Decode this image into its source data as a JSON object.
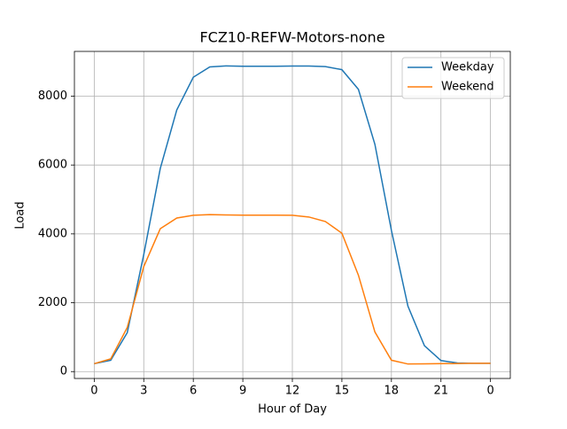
{
  "chart_data": {
    "type": "line",
    "title": "FCZ10-REFW-Motors-none",
    "x_label": "Hour of Day",
    "y_label": "Load",
    "x": [
      0,
      1,
      2,
      3,
      4,
      5,
      6,
      7,
      8,
      9,
      10,
      11,
      12,
      13,
      14,
      15,
      16,
      17,
      18,
      19,
      20,
      21,
      22,
      23,
      24
    ],
    "series": [
      {
        "name": "Weekday",
        "color": "#1f77b4",
        "values": [
          230,
          330,
          1130,
          3400,
          5900,
          7600,
          8550,
          8850,
          8880,
          8870,
          8870,
          8870,
          8875,
          8875,
          8860,
          8770,
          8200,
          6600,
          4100,
          1900,
          750,
          320,
          250,
          240,
          240
        ]
      },
      {
        "name": "Weekend",
        "color": "#ff7f0e",
        "values": [
          230,
          370,
          1280,
          3050,
          4150,
          4460,
          4540,
          4560,
          4550,
          4545,
          4545,
          4545,
          4540,
          4490,
          4360,
          4020,
          2800,
          1150,
          330,
          220,
          225,
          230,
          235,
          240,
          240
        ]
      }
    ],
    "xlim": [
      -1.2,
      25.2
    ],
    "xticks": [
      0,
      3,
      6,
      9,
      12,
      15,
      18,
      21,
      {
        "value": 24,
        "label": "0"
      }
    ],
    "ylim": [
      -200,
      9300
    ],
    "yticks": [
      0,
      2000,
      4000,
      6000,
      8000
    ],
    "grid": true,
    "legend": "upper right"
  }
}
